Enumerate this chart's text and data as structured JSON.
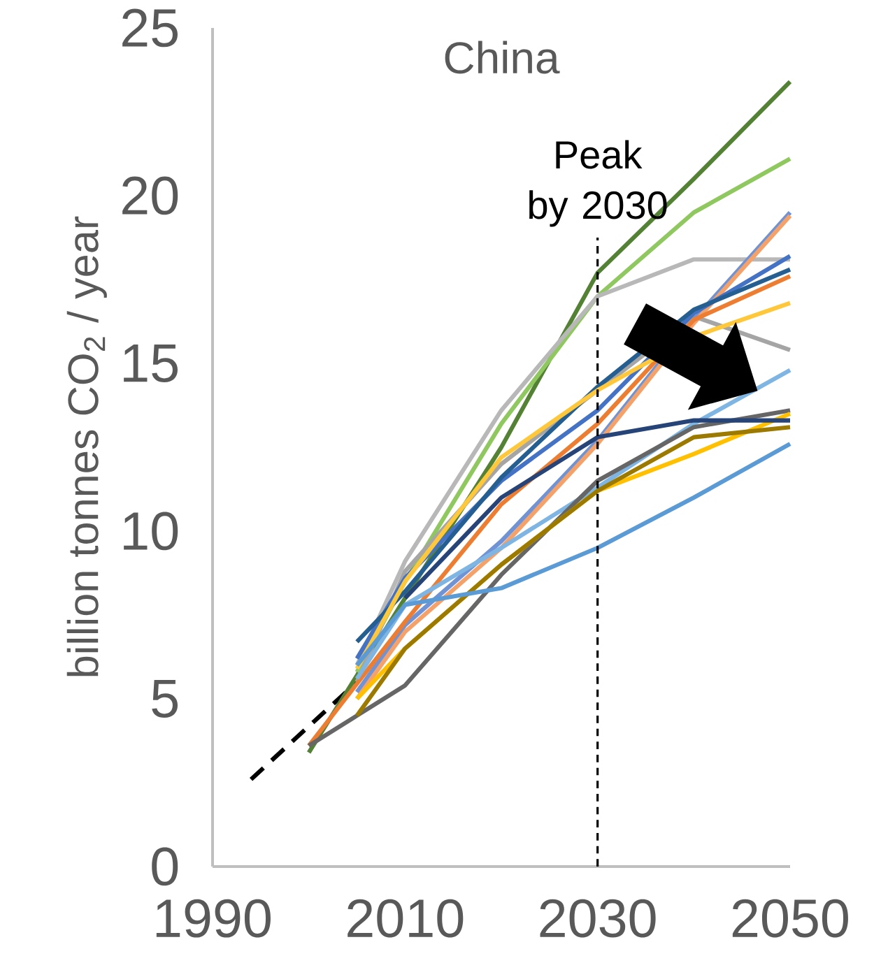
{
  "chart_data": {
    "type": "line",
    "title": "China",
    "ylabel": "billion tonnes CO$_{2}$ / year",
    "x": [
      2000,
      2005,
      2010,
      2020,
      2030,
      2040,
      2050
    ],
    "xlim": [
      1990,
      2050
    ],
    "xticks": [
      1990,
      2010,
      2030,
      2050
    ],
    "ylim": [
      0,
      25
    ],
    "yticks": [
      0,
      5,
      10,
      15,
      20,
      25
    ],
    "legend": false,
    "ref_lines": [
      {
        "axis": "x",
        "value": 2030,
        "label": "Peak by 2030",
        "color": "#000000",
        "line_style": "dashed"
      }
    ],
    "series": [
      {
        "color": "#000000",
        "line_style": "dashed",
        "x": [
          1994,
          2005
        ],
        "values": [
          2.6,
          5.5
        ]
      },
      {
        "color": "#548235",
        "values": [
          3.4,
          null,
          8.0,
          12.5,
          17.7,
          20.5,
          23.4
        ]
      },
      {
        "color": "#8fc85e",
        "values": [
          null,
          5.8,
          8.5,
          13.2,
          17.0,
          19.5,
          21.1
        ]
      },
      {
        "color": "#b8b8b8",
        "values": [
          null,
          6.0,
          9.1,
          13.6,
          17.0,
          18.1,
          18.1
        ]
      },
      {
        "color": "#a5a5a5",
        "values": [
          null,
          5.5,
          8.8,
          12.0,
          14.2,
          16.4,
          15.4
        ]
      },
      {
        "color": "#6f93d4",
        "values": [
          null,
          5.2,
          7.2,
          9.7,
          12.7,
          16.3,
          19.5
        ]
      },
      {
        "color": "#f4a26a",
        "values": [
          null,
          5.0,
          7.0,
          9.5,
          12.6,
          16.2,
          19.4
        ]
      },
      {
        "color": "#4472c4",
        "values": [
          null,
          6.2,
          8.6,
          11.5,
          13.6,
          16.5,
          18.2
        ]
      },
      {
        "color": "#255e91",
        "values": [
          null,
          6.7,
          8.2,
          11.6,
          14.3,
          16.6,
          17.8
        ]
      },
      {
        "color": "#ed7d31",
        "values": [
          3.6,
          null,
          7.3,
          10.8,
          13.2,
          16.3,
          17.6
        ]
      },
      {
        "color": "#ffc83a",
        "values": [
          null,
          5.9,
          8.5,
          12.2,
          14.2,
          15.8,
          16.8
        ]
      },
      {
        "color": "#7eb5e3",
        "values": [
          null,
          5.6,
          7.8,
          9.5,
          11.3,
          13.2,
          14.8
        ]
      },
      {
        "color": "#666666",
        "values": [
          3.6,
          4.5,
          5.4,
          8.7,
          11.5,
          13.1,
          13.6
        ]
      },
      {
        "color": "#ffc000",
        "values": [
          null,
          5.0,
          6.5,
          9.0,
          11.2,
          12.3,
          13.5
        ]
      },
      {
        "color": "#264478",
        "values": [
          null,
          null,
          8.0,
          11.0,
          12.8,
          13.3,
          13.3
        ]
      },
      {
        "color": "#9c7a00",
        "values": [
          null,
          4.5,
          6.5,
          9.0,
          11.2,
          12.8,
          13.1
        ]
      },
      {
        "color": "#5b9bd5",
        "values": [
          null,
          6.0,
          7.8,
          8.3,
          9.5,
          11.0,
          12.6
        ]
      }
    ]
  }
}
